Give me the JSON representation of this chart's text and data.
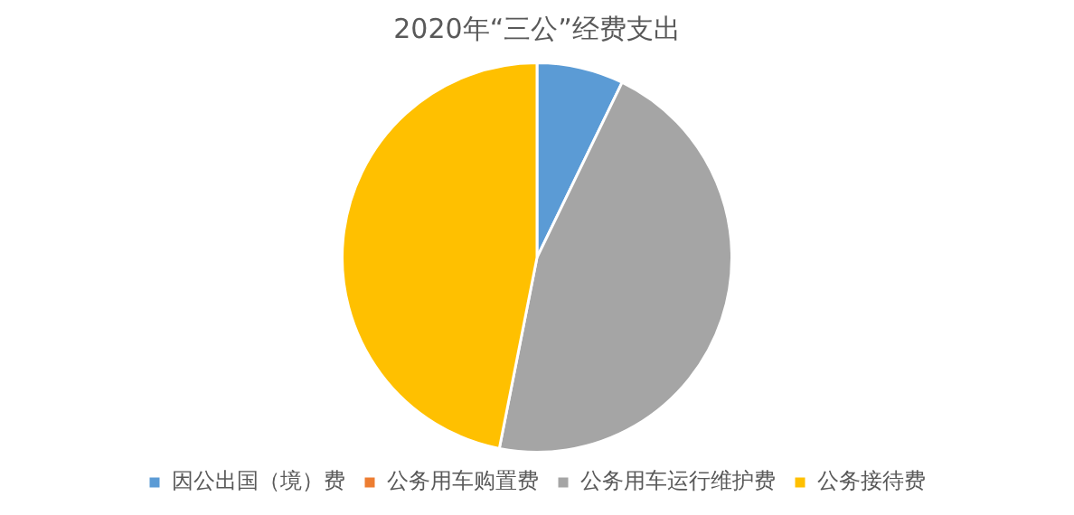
{
  "chart_data": {
    "type": "pie",
    "title": "2020年“三公”经费支出",
    "categories": [
      "因公出国（境）费",
      "公务用车购置费",
      "公务用车运行维护费",
      "公务接待费"
    ],
    "values": [
      7.2,
      0,
      45.9,
      46.9
    ],
    "colors": [
      "#5b9bd5",
      "#ed7d31",
      "#a5a5a5",
      "#ffc000"
    ],
    "legend": "bottom"
  }
}
